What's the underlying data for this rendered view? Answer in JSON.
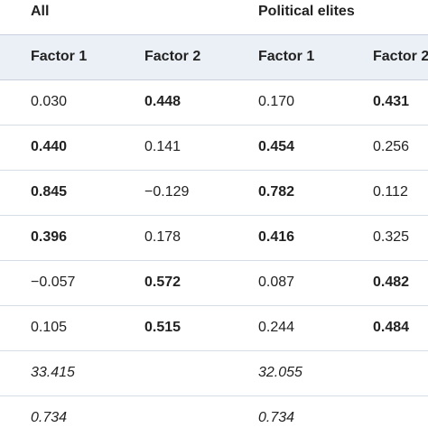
{
  "groups": {
    "all": "All",
    "political_elites": "Political elites"
  },
  "columns": [
    "Factor 1",
    "Factor 2",
    "Factor 1",
    "Factor 2"
  ],
  "rows": [
    {
      "cells": [
        {
          "text": "0.030",
          "bold": false
        },
        {
          "text": "0.448",
          "bold": true
        },
        {
          "text": "0.170",
          "bold": false
        },
        {
          "text": "0.431",
          "bold": true
        }
      ]
    },
    {
      "cells": [
        {
          "text": "0.440",
          "bold": true
        },
        {
          "text": "0.141",
          "bold": false
        },
        {
          "text": "0.454",
          "bold": true
        },
        {
          "text": "0.256",
          "bold": false
        }
      ]
    },
    {
      "cells": [
        {
          "text": "0.845",
          "bold": true
        },
        {
          "text": "−0.129",
          "bold": false
        },
        {
          "text": "0.782",
          "bold": true
        },
        {
          "text": "0.112",
          "bold": false
        }
      ]
    },
    {
      "cells": [
        {
          "text": "0.396",
          "bold": true
        },
        {
          "text": "0.178",
          "bold": false
        },
        {
          "text": "0.416",
          "bold": true
        },
        {
          "text": "0.325",
          "bold": false
        }
      ]
    },
    {
      "cells": [
        {
          "text": "−0.057",
          "bold": false
        },
        {
          "text": "0.572",
          "bold": true
        },
        {
          "text": "0.087",
          "bold": false
        },
        {
          "text": "0.482",
          "bold": true
        }
      ]
    },
    {
      "cells": [
        {
          "text": "0.105",
          "bold": false
        },
        {
          "text": "0.515",
          "bold": true
        },
        {
          "text": "0.244",
          "bold": false
        },
        {
          "text": "0.484",
          "bold": true
        }
      ]
    }
  ],
  "summary_rows": [
    {
      "all": "33.415",
      "political_elites": "32.055"
    },
    {
      "all": "0.734",
      "political_elites": "0.734"
    }
  ]
}
